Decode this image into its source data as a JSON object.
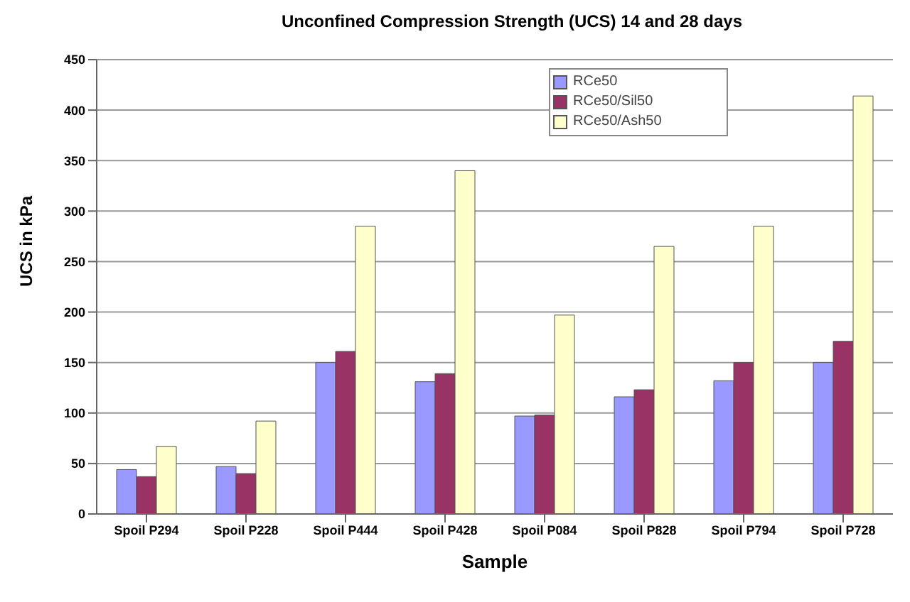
{
  "chart_data": {
    "type": "bar",
    "title": "Unconfined Compression Strength (UCS) 14 and 28 days",
    "xlabel": "Sample",
    "ylabel": "UCS in kPa",
    "categories": [
      "Spoil P294",
      "Spoil P228",
      "Spoil P444",
      "Spoil P428",
      "Spoil P084",
      "Spoil P828",
      "Spoil P794",
      "Spoil P728"
    ],
    "series": [
      {
        "name": "RCe50",
        "color": "#9999ff",
        "values": [
          44,
          47,
          150,
          131,
          97,
          116,
          132,
          150
        ]
      },
      {
        "name": "RCe50/Sil50",
        "color": "#993366",
        "values": [
          37,
          40,
          161,
          139,
          98,
          123,
          150,
          171
        ]
      },
      {
        "name": "RCe50/Ash50",
        "color": "#ffffcc",
        "values": [
          67,
          92,
          285,
          340,
          197,
          265,
          285,
          414
        ]
      }
    ],
    "ylim": [
      0,
      450
    ],
    "yticks": [
      0,
      50,
      100,
      150,
      200,
      250,
      300,
      350,
      400,
      450
    ],
    "grid": "y",
    "legend": "top right"
  }
}
